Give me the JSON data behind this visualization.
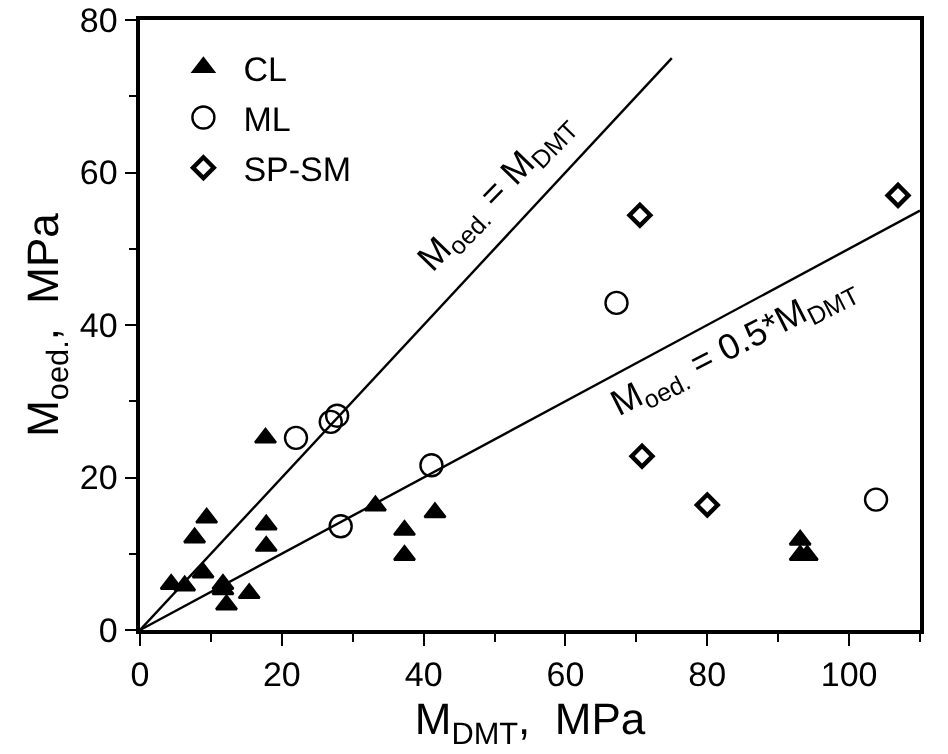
{
  "chart_data": {
    "type": "scatter",
    "xlabel": "M$_{DMT}$,  MPa",
    "ylabel": "M$_{oed.}$,  MPa",
    "xlim": [
      0,
      110
    ],
    "xticks": [
      0,
      20,
      40,
      60,
      80,
      100
    ],
    "ylim": [
      0,
      80
    ],
    "yticks": [
      0,
      20,
      40,
      60,
      80
    ],
    "grid": false,
    "legend": "top left",
    "series": [
      {
        "name": "CL",
        "color": "#000000",
        "marker": "triangle",
        "x": [
          4.4,
          6.3,
          7.7,
          9.4,
          8.9,
          11.7,
          11.7,
          12.2,
          15.4,
          17.7,
          17.8,
          17.8,
          33.2,
          37.3,
          37.3,
          41.6,
          93.1,
          93.1,
          94.1
        ],
        "values": [
          6.0,
          5.8,
          12.1,
          14.7,
          7.5,
          6.0,
          5.3,
          3.3,
          4.8,
          25.2,
          13.8,
          11.0,
          16.3,
          13.1,
          9.8,
          15.4,
          11.8,
          9.8,
          9.8
        ]
      },
      {
        "name": "ML",
        "color": "#000000",
        "marker": "circle",
        "x": [
          22.0,
          26.9,
          27.8,
          28.3,
          41.1,
          67.2,
          103.8
        ],
        "values": [
          25.2,
          27.3,
          28.1,
          13.6,
          21.6,
          42.9,
          17.1
        ]
      },
      {
        "name": "SP-SM",
        "color": "#000000",
        "marker": "diamond",
        "x": [
          70.5,
          70.8,
          80.0,
          106.9
        ],
        "values": [
          54.4,
          22.8,
          16.4,
          57.0
        ]
      },
      {
        "type": "line",
        "color": "#000000",
        "line_style": "solid",
        "x": [
          0,
          75
        ],
        "values": [
          0,
          75
        ]
      },
      {
        "type": "line",
        "color": "#000000",
        "line_style": "solid",
        "x": [
          0,
          110
        ],
        "values": [
          0,
          55
        ]
      }
    ],
    "annotations": [
      {
        "text": "M$_{oed.}$ = M$_{DMT}$",
        "x": 54,
        "y": 54
      },
      {
        "text": "M$_{oed.}$ = 0.5*M$_{DMT}$",
        "x": 82,
        "y": 41
      }
    ]
  }
}
